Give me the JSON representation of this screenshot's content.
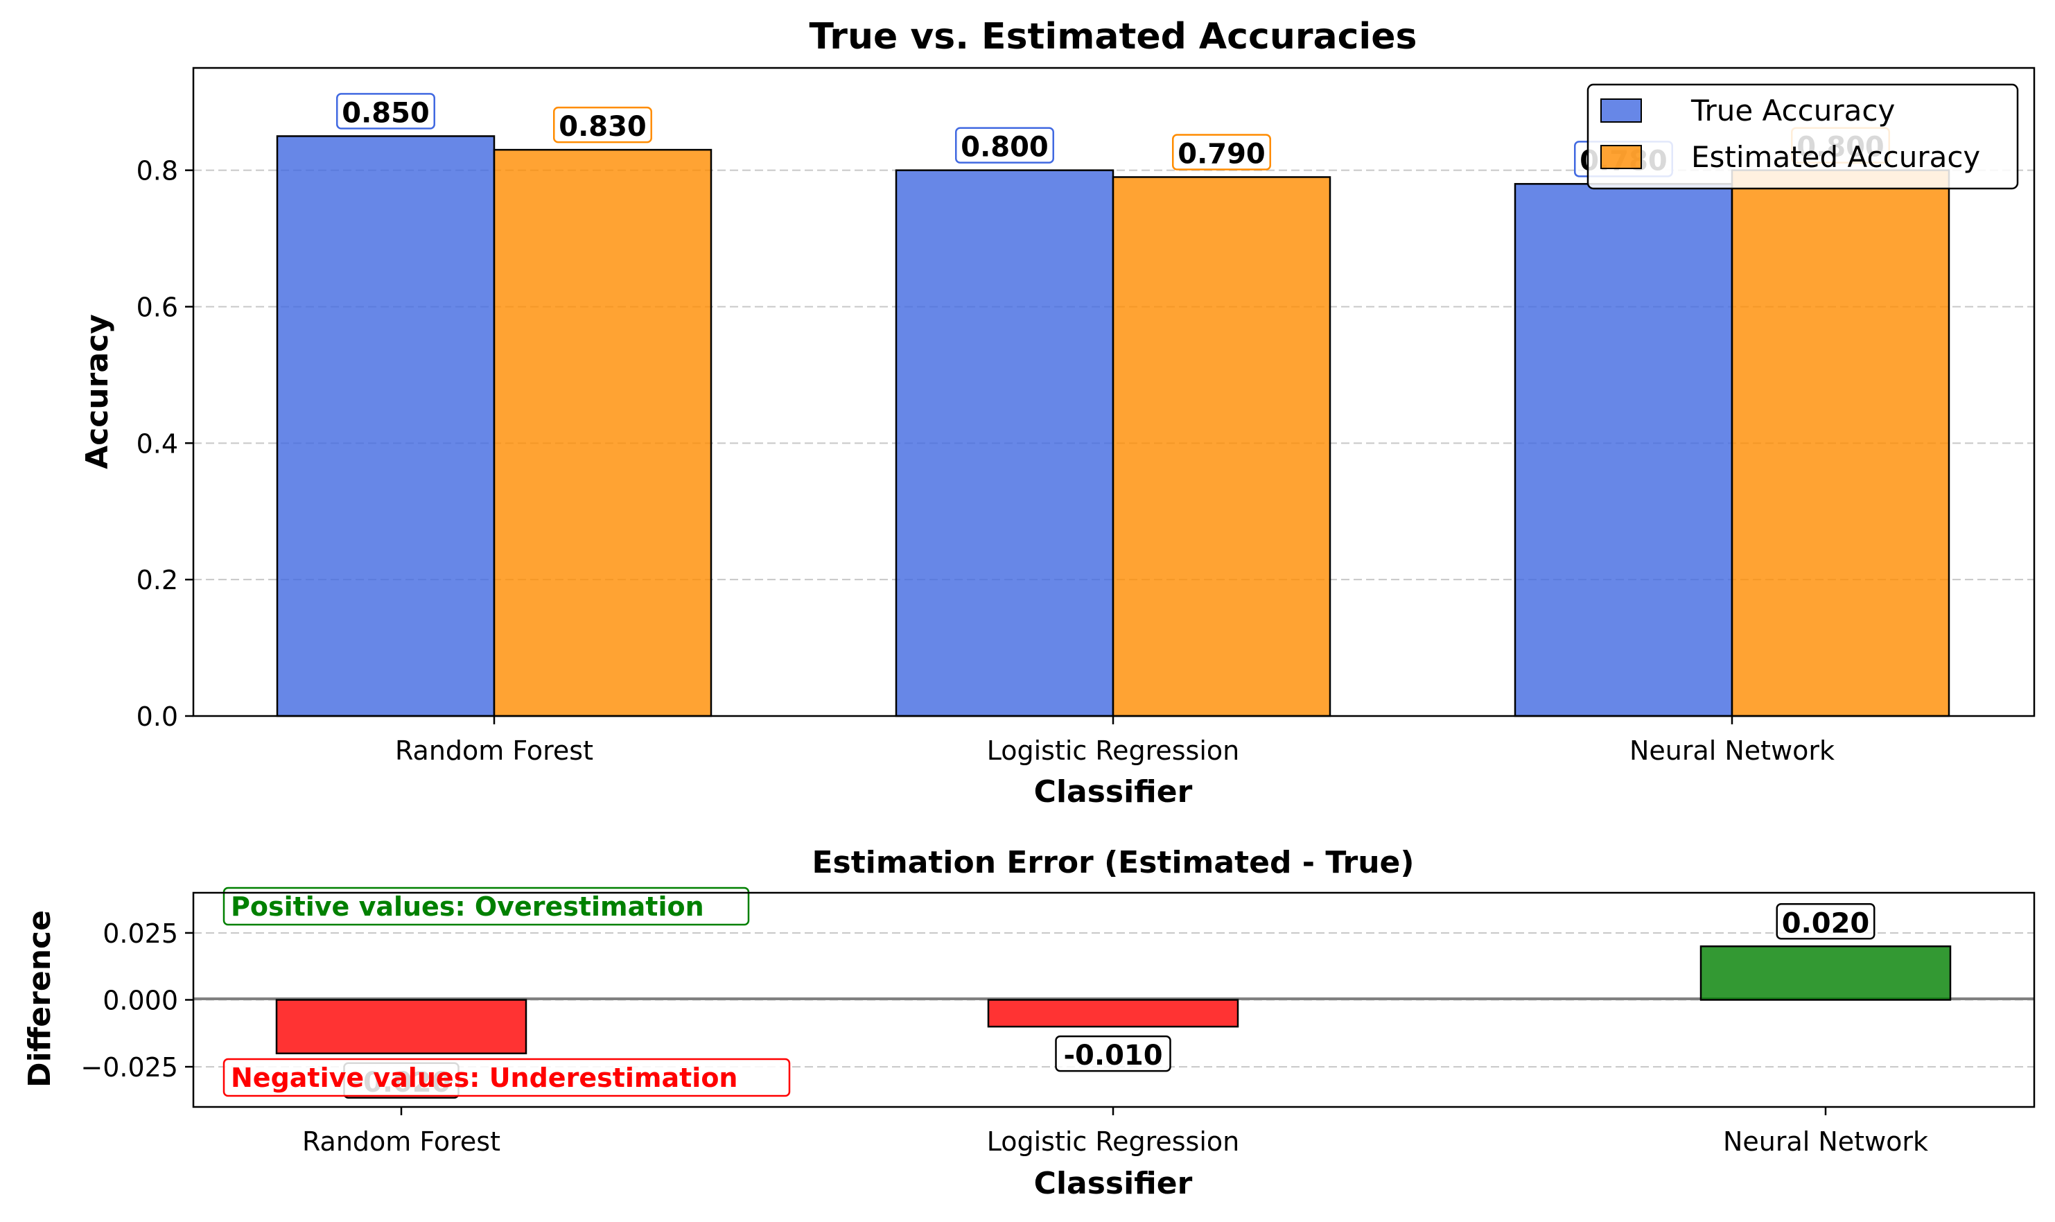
{
  "chart_data": [
    {
      "type": "bar",
      "title": "True vs. Estimated Accuracies",
      "xlabel": "Classifier",
      "ylabel": "Accuracy",
      "categories": [
        "Random Forest",
        "Logistic Regression",
        "Neural Network"
      ],
      "series": [
        {
          "name": "True Accuracy",
          "values": [
            0.85,
            0.8,
            0.78
          ],
          "labels": [
            "0.850",
            "0.800",
            "0.780"
          ],
          "color": "#4169e1"
        },
        {
          "name": "Estimated Accuracy",
          "values": [
            0.83,
            0.79,
            0.8
          ],
          "labels": [
            "0.830",
            "0.790",
            "0.800"
          ],
          "color": "#ff8c00"
        }
      ],
      "ylim": [
        0,
        0.95
      ],
      "yticks": [
        "0.0",
        "0.2",
        "0.4",
        "0.6",
        "0.8"
      ],
      "grid": "y, dashed",
      "legend_position": "top-right"
    },
    {
      "type": "bar",
      "title": "Estimation Error (Estimated - True)",
      "xlabel": "Classifier",
      "ylabel": "Difference",
      "categories": [
        "Random Forest",
        "Logistic Regression",
        "Neural Network"
      ],
      "values": [
        -0.02,
        -0.01,
        0.02
      ],
      "labels": [
        "-0.020",
        "-0.010",
        "0.020"
      ],
      "ylim": [
        -0.04,
        0.04
      ],
      "yticks": [
        "0.025",
        "0.000",
        "−0.025"
      ],
      "grid": "y, dashed",
      "colors": {
        "positive": "#008000",
        "negative": "#ff0000"
      },
      "annotations": [
        "Positive values: Overestimation",
        "Negative values: Underestimation"
      ]
    }
  ]
}
